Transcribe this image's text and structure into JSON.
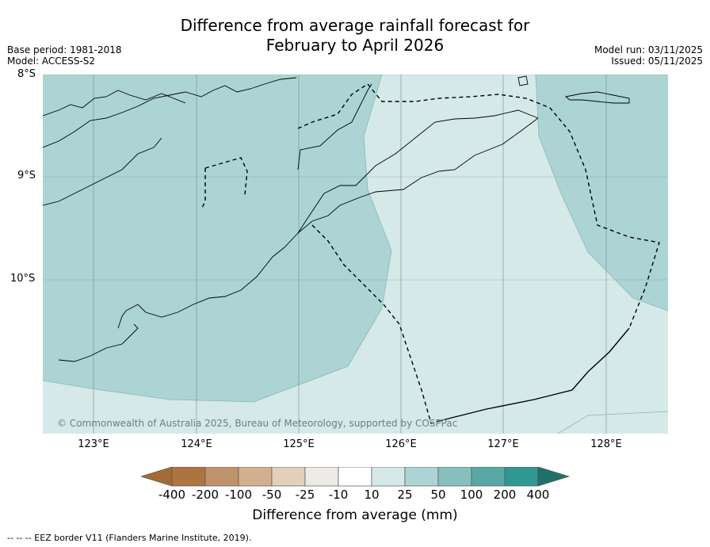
{
  "title_line1": "Difference from average rainfall forecast for",
  "title_line2": "February to April 2026",
  "base_period": "Base period: 1981-2018",
  "model": "Model: ACCESS-S2",
  "model_run": "Model run: 03/11/2025",
  "issued": "Issued: 05/11/2025",
  "lat_labels": [
    "8°S",
    "9°S",
    "10°S"
  ],
  "lon_labels": [
    "123°E",
    "124°E",
    "125°E",
    "126°E",
    "127°E",
    "128°E"
  ],
  "copyright": "© Commonwealth of Australia 2025, Bureau of Meteorology, supported by COSPPac",
  "colorbar": {
    "title": "Difference from average (mm)",
    "labels": [
      "-400",
      "-200",
      "-100",
      "-50",
      "-25",
      "-10",
      "10",
      "25",
      "50",
      "100",
      "200",
      "400"
    ],
    "colors": [
      "#a56b35",
      "#ac743f",
      "#c0926b",
      "#d2b08f",
      "#e2d0bc",
      "#eeebe6",
      "#ffffff",
      "#d5e9e8",
      "#acd4d4",
      "#87bfbd",
      "#5aa8a6",
      "#2e9893",
      "#22706c"
    ]
  },
  "map_colors": {
    "dark_zone": "#acd4d4",
    "light_zone": "#d5e9e8"
  },
  "footer": "--  --  -- EEZ border V11 (Flanders Marine Institute, 2019)."
}
